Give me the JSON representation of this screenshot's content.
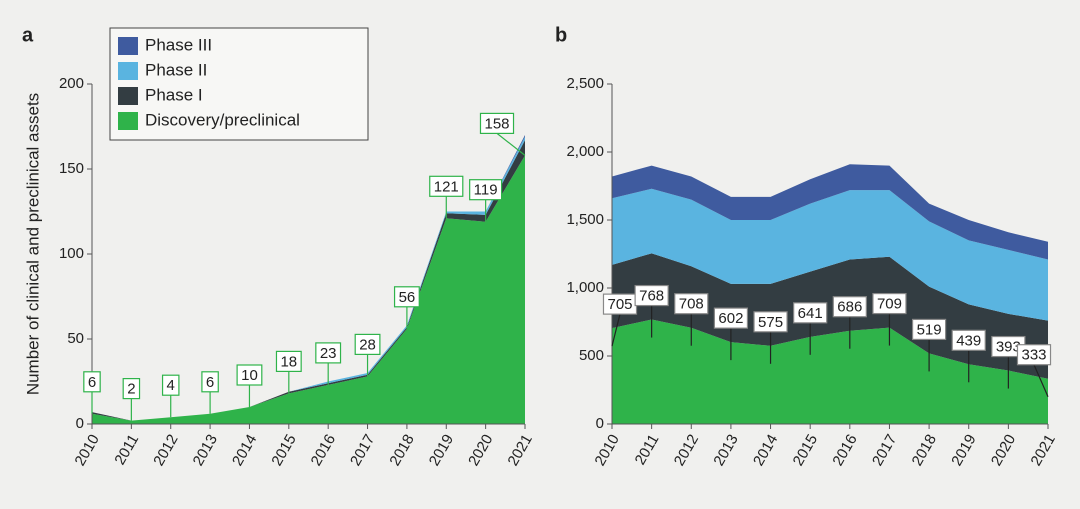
{
  "chart_data": [
    {
      "type": "area",
      "panel": "a",
      "ylabel": "Number of clinical and preclinical assets",
      "categories": [
        "2010",
        "2011",
        "2012",
        "2013",
        "2014",
        "2015",
        "2016",
        "2017",
        "2018",
        "2019",
        "2020",
        "2021"
      ],
      "ylim": [
        0,
        200
      ],
      "yticks": [
        0,
        50,
        100,
        150,
        200
      ],
      "series": [
        {
          "name": "Phase III",
          "color": "#3f5b9f",
          "values": [
            0,
            0,
            0,
            0,
            0,
            0,
            0,
            0,
            0,
            0,
            0,
            1
          ]
        },
        {
          "name": "Phase II",
          "color": "#5ab4e0",
          "values": [
            0,
            0,
            0,
            0,
            0,
            0,
            1,
            1,
            1,
            1,
            2,
            2
          ]
        },
        {
          "name": "Phase I",
          "color": "#333d42",
          "values": [
            1,
            0,
            0,
            0,
            0,
            1,
            1,
            1,
            1,
            3,
            4,
            9
          ]
        },
        {
          "name": "Discovery/preclinical",
          "color": "#2fb34a",
          "values": [
            6,
            2,
            4,
            6,
            10,
            18,
            23,
            28,
            56,
            121,
            119,
            158
          ]
        }
      ]
    },
    {
      "type": "area",
      "panel": "b",
      "categories": [
        "2010",
        "2011",
        "2012",
        "2013",
        "2014",
        "2015",
        "2016",
        "2017",
        "2018",
        "2019",
        "2020",
        "2021"
      ],
      "ylim": [
        0,
        2500
      ],
      "yticks": [
        0,
        500,
        {
          "value": 1000,
          "label": "1,000"
        },
        {
          "value": 1500,
          "label": "1,500"
        },
        {
          "value": 2000,
          "label": "2,000"
        },
        {
          "value": 2500,
          "label": "2,500"
        }
      ],
      "series": [
        {
          "color": "#3f5b9f",
          "values": [
            160,
            170,
            170,
            170,
            170,
            180,
            190,
            180,
            130,
            150,
            130,
            130
          ]
        },
        {
          "color": "#5ab4e0",
          "values": [
            490,
            475,
            490,
            470,
            470,
            500,
            510,
            490,
            480,
            470,
            470,
            450
          ]
        },
        {
          "color": "#333d42",
          "values": [
            465,
            487,
            452,
            428,
            455,
            479,
            524,
            521,
            491,
            441,
            417,
            427
          ]
        },
        {
          "color": "#2fb34a",
          "values": [
            705,
            768,
            708,
            602,
            575,
            641,
            686,
            709,
            519,
            439,
            393,
            333
          ]
        }
      ]
    }
  ]
}
